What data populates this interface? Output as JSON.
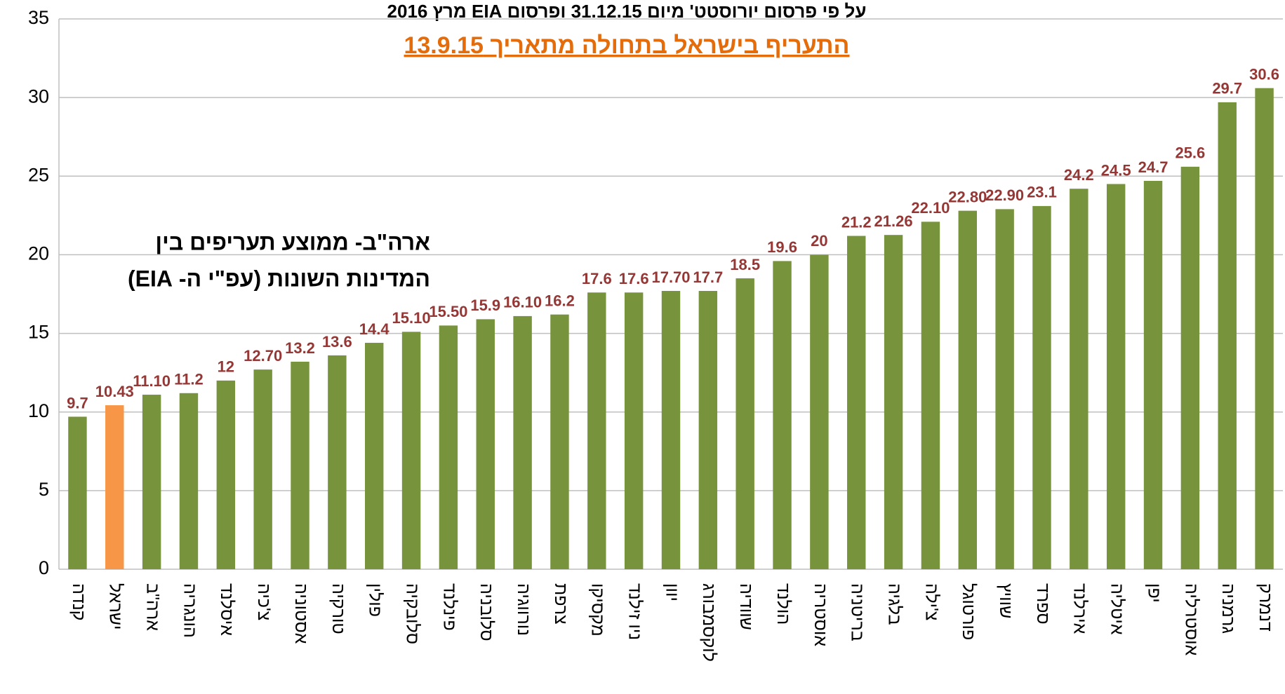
{
  "chart_data": {
    "type": "bar",
    "title": "על פי פרסום יורוסטט' מיום 31.12.15 ופרסום EIA מרץ 2016",
    "subtitle": "התעריף בישראל בתחולה מתאריך 13.9.15",
    "annotations": [
      "ארה\"ב- ממוצע תעריפים בין",
      "המדינות השונות (עפ\"י ה- EIA)"
    ],
    "categories": [
      "קנדה",
      "ישראל",
      "ארה\"ב",
      "הונגריה",
      "איסלנד",
      "צ'כיה",
      "אסטוניה",
      "טורקיה",
      "פולין",
      "סלובקיה",
      "פינלנד",
      "סלובניה",
      "נורווגיה",
      "צרפת",
      "מקסיקו",
      "ניו זילנד",
      "יוון",
      "לוקסמבורג",
      "שוודיה",
      "הולנד",
      "אוסטריה",
      "בריטניה",
      "בלגיה",
      "צ'ילה",
      "פורטוגל",
      "שוויץ",
      "ספרד",
      "אירלנד",
      "איטליה",
      "יפן",
      "אוסטרליה",
      "גרמניה",
      "דנמרק"
    ],
    "values": [
      9.7,
      10.43,
      11.1,
      11.2,
      12,
      12.7,
      13.2,
      13.6,
      14.4,
      15.1,
      15.5,
      15.9,
      16.1,
      16.2,
      17.6,
      17.6,
      17.7,
      17.7,
      18.5,
      19.6,
      20,
      21.2,
      21.26,
      22.1,
      22.8,
      22.9,
      23.1,
      24.2,
      24.5,
      24.7,
      25.6,
      29.7,
      30.6
    ],
    "value_labels": [
      "9.7",
      "10.43",
      "11.10",
      "11.2",
      "12",
      "12.70",
      "13.2",
      "13.6",
      "14.4",
      "15.10",
      "15.50",
      "15.9",
      "16.10",
      "16.2",
      "17.6",
      "17.6",
      "17.70",
      "17.7",
      "18.5",
      "19.6",
      "20",
      "21.2",
      "21.26",
      "22.10",
      "22.80",
      "22.90",
      "23.1",
      "24.2",
      "24.5",
      "24.7",
      "25.6",
      "29.7",
      "30.6"
    ],
    "colors": [
      "#77933c",
      "#f79646",
      "#77933c",
      "#77933c",
      "#77933c",
      "#77933c",
      "#77933c",
      "#77933c",
      "#77933c",
      "#77933c",
      "#77933c",
      "#77933c",
      "#77933c",
      "#77933c",
      "#77933c",
      "#77933c",
      "#77933c",
      "#77933c",
      "#77933c",
      "#77933c",
      "#77933c",
      "#77933c",
      "#77933c",
      "#77933c",
      "#77933c",
      "#77933c",
      "#77933c",
      "#77933c",
      "#77933c",
      "#77933c",
      "#77933c",
      "#77933c",
      "#77933c"
    ],
    "ylim": [
      0,
      35
    ],
    "yticks": [
      0,
      5,
      10,
      15,
      20,
      25,
      30,
      35
    ],
    "grid": true
  }
}
